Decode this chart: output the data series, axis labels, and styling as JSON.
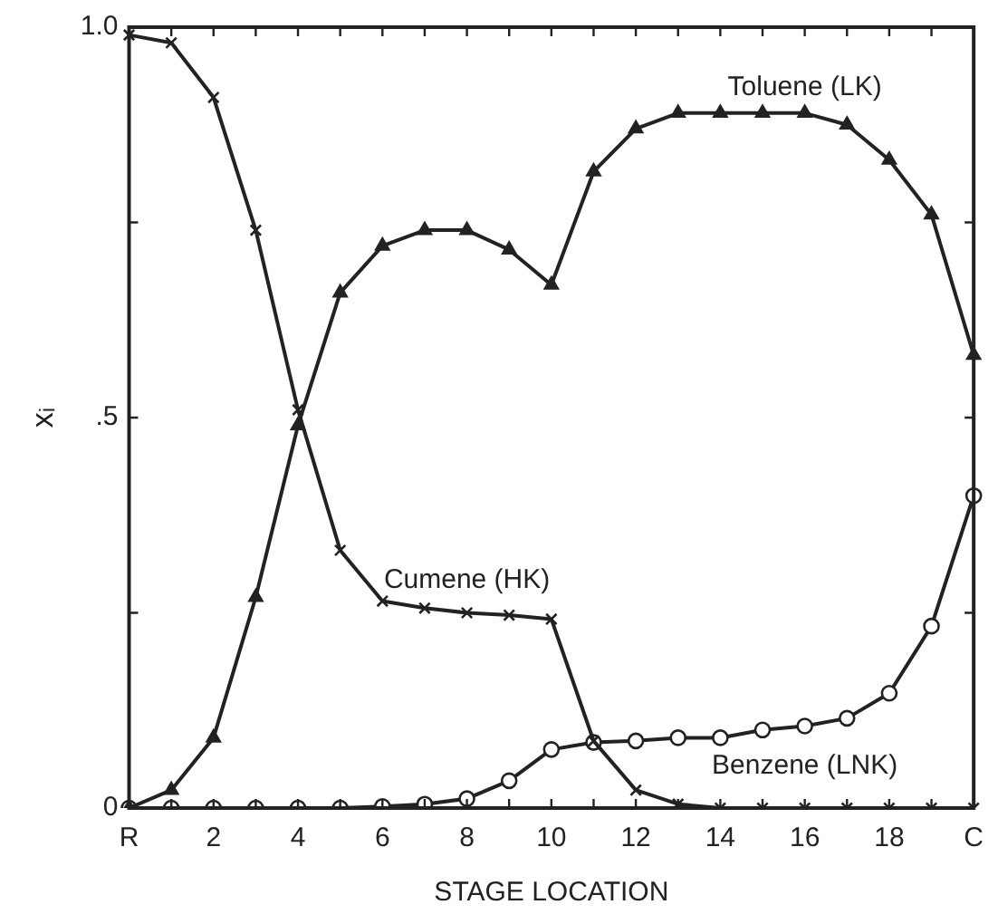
{
  "chart_data": {
    "type": "line",
    "xlabel": "STAGE LOCATION",
    "ylabel": "xᵢ",
    "categories": [
      "R",
      null,
      "2",
      null,
      "4",
      null,
      "6",
      null,
      "8",
      null,
      "10",
      null,
      "12",
      null,
      "14",
      null,
      "16",
      null,
      "18",
      null,
      "C"
    ],
    "ylim": [
      0,
      1
    ],
    "yticks": [
      {
        "value": 0,
        "label": "0"
      },
      {
        "value": 0.25,
        "label": null
      },
      {
        "value": 0.5,
        "label": ".5"
      },
      {
        "value": 0.75,
        "label": null
      },
      {
        "value": 1,
        "label": "1.0"
      }
    ],
    "grid": false,
    "legend": false,
    "line_style": "solid",
    "series": [
      {
        "name": "Toluene (LK)",
        "color": "#222222",
        "marker": "triangle",
        "values": [
          0,
          0.023,
          0.09,
          0.27,
          0.49,
          0.66,
          0.72,
          0.74,
          0.74,
          0.715,
          0.67,
          0.815,
          0.87,
          0.89,
          0.89,
          0.89,
          0.89,
          0.875,
          0.83,
          0.76,
          0.58
        ]
      },
      {
        "name": "Cumene (HK)",
        "color": "#222222",
        "marker": "cross",
        "values": [
          0.99,
          0.98,
          0.91,
          0.74,
          0.51,
          0.33,
          0.265,
          0.256,
          0.25,
          0.247,
          0.242,
          0.086,
          0.023,
          0.005,
          0,
          0,
          0,
          0,
          0,
          0,
          0
        ]
      },
      {
        "name": "Benzene (LNK)",
        "color": "#222222",
        "marker": "circle",
        "values": [
          0,
          0,
          0,
          0,
          0,
          0,
          0.002,
          0.005,
          0.012,
          0.035,
          0.075,
          0.084,
          0.086,
          0.09,
          0.09,
          0.1,
          0.105,
          0.115,
          0.147,
          0.233,
          0.4
        ]
      }
    ]
  }
}
